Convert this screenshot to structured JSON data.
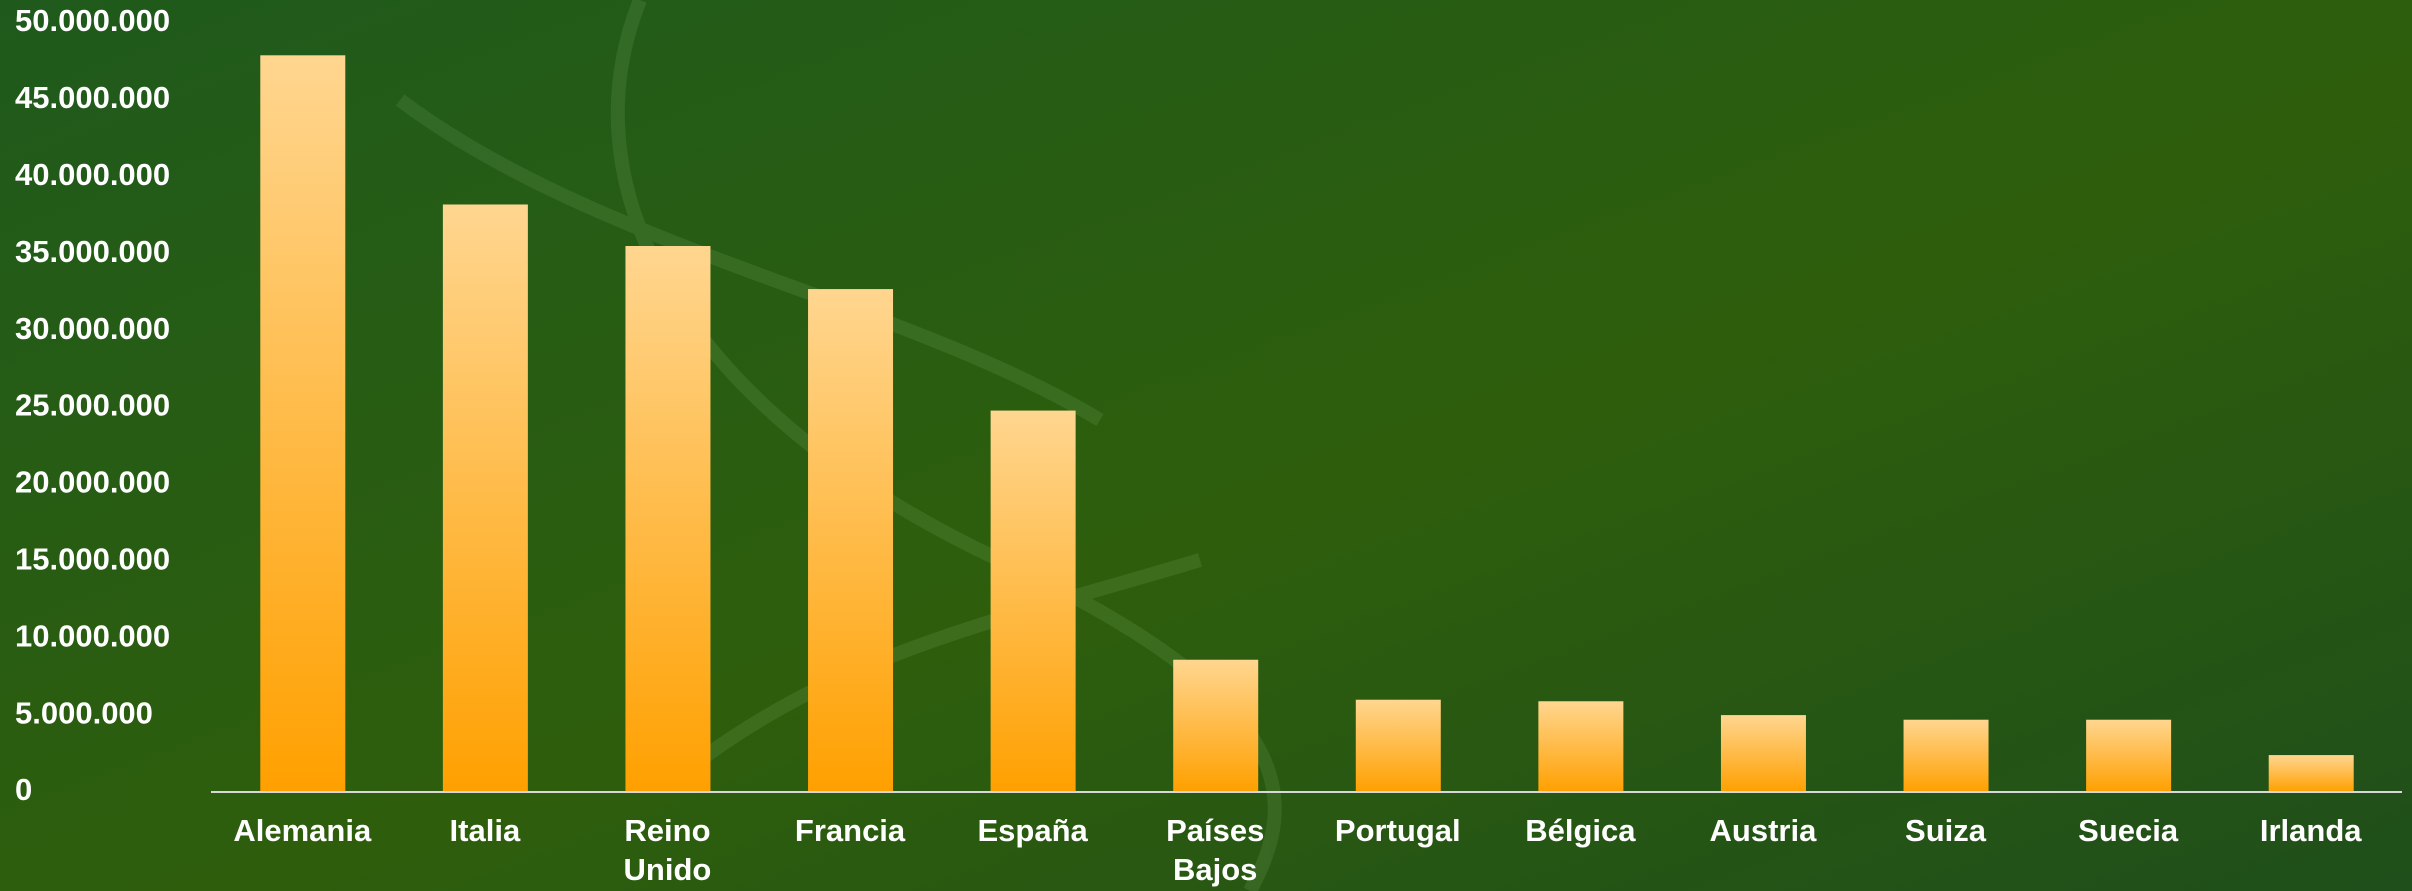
{
  "chart_data": {
    "type": "bar",
    "categories": [
      "Alemania",
      "Italia",
      "Reino Unido",
      "Francia",
      "España",
      "Países Bajos",
      "Portugal",
      "Bélgica",
      "Austria",
      "Suiza",
      "Suecia",
      "Irlanda"
    ],
    "values": [
      47900000,
      38200000,
      35500000,
      32700000,
      24800000,
      8600000,
      6000000,
      5900000,
      5000000,
      4700000,
      4700000,
      2400000
    ],
    "color": "#ffa000",
    "ylim": [
      0,
      50000000
    ],
    "yticks": [
      0,
      {
        "value": 5000000,
        "label": "5.000.000"
      },
      {
        "value": 10000000,
        "label": "10.000.000"
      },
      {
        "value": 15000000,
        "label": "15.000.000"
      },
      {
        "value": 20000000,
        "label": "20.000.000"
      },
      {
        "value": 25000000,
        "label": "25.000.000"
      },
      {
        "value": 30000000,
        "label": "30.000.000"
      },
      {
        "value": 35000000,
        "label": "35.000.000"
      },
      {
        "value": 40000000,
        "label": "40.000.000"
      },
      {
        "value": 45000000,
        "label": "45.000.000"
      },
      {
        "value": 50000000,
        "label": "50.000.000"
      }
    ],
    "grid": false
  }
}
